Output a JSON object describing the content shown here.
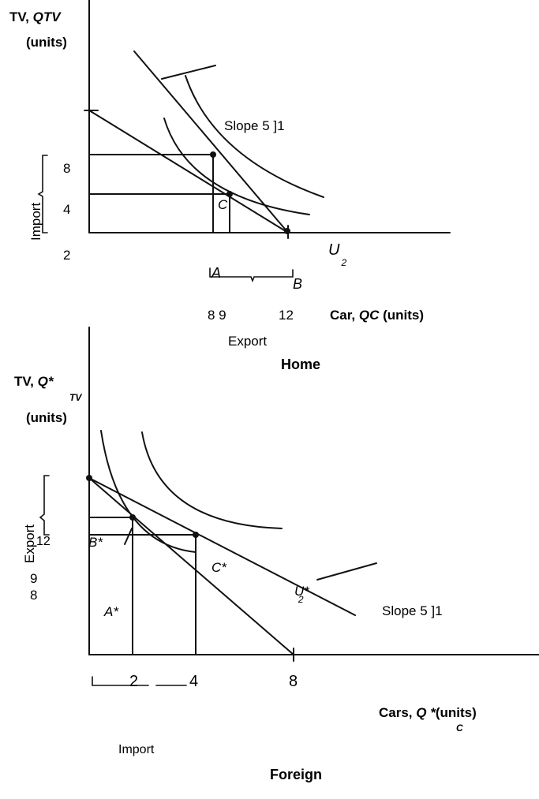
{
  "home": {
    "ylabel_line1_a": "TV, ",
    "ylabel_line1_b": "QTV",
    "ylabel_line2": "(units)",
    "tick_8": "8",
    "tick_4": "4",
    "tick_2": "2",
    "import_label": "Import",
    "slope_label": "Slope 5 ]1",
    "point_c": "C",
    "point_a": "A",
    "point_b": "B",
    "curve_u": "U",
    "curve_u_sub": "2",
    "xticks": "8 9",
    "xtick_12": "12",
    "xlabel_a": "Car, ",
    "xlabel_b": "QC",
    "xlabel_c": " (units)",
    "export_label": "Export",
    "title": "Home"
  },
  "foreign": {
    "ylabel_line1_a": "TV, ",
    "ylabel_line1_b": "Q*",
    "ylabel_sub": "TV",
    "ylabel_line2": "(units)",
    "tick_12": "12",
    "tick_9": "9",
    "tick_8": "8",
    "export_label": "Export",
    "point_b": "B*",
    "point_c": "C*",
    "point_a": "A*",
    "curve_u": "U*",
    "curve_u_sub": "2",
    "slope_label": "Slope 5 ]1",
    "xtick_2": "2",
    "xtick_4": "4",
    "xtick_8": "8",
    "xlabel_a": "Cars, ",
    "xlabel_b": "Q *",
    "xlabel_sub": "C",
    "xlabel_c": "(units)",
    "import_label": "Import",
    "title": "Foreign"
  }
}
